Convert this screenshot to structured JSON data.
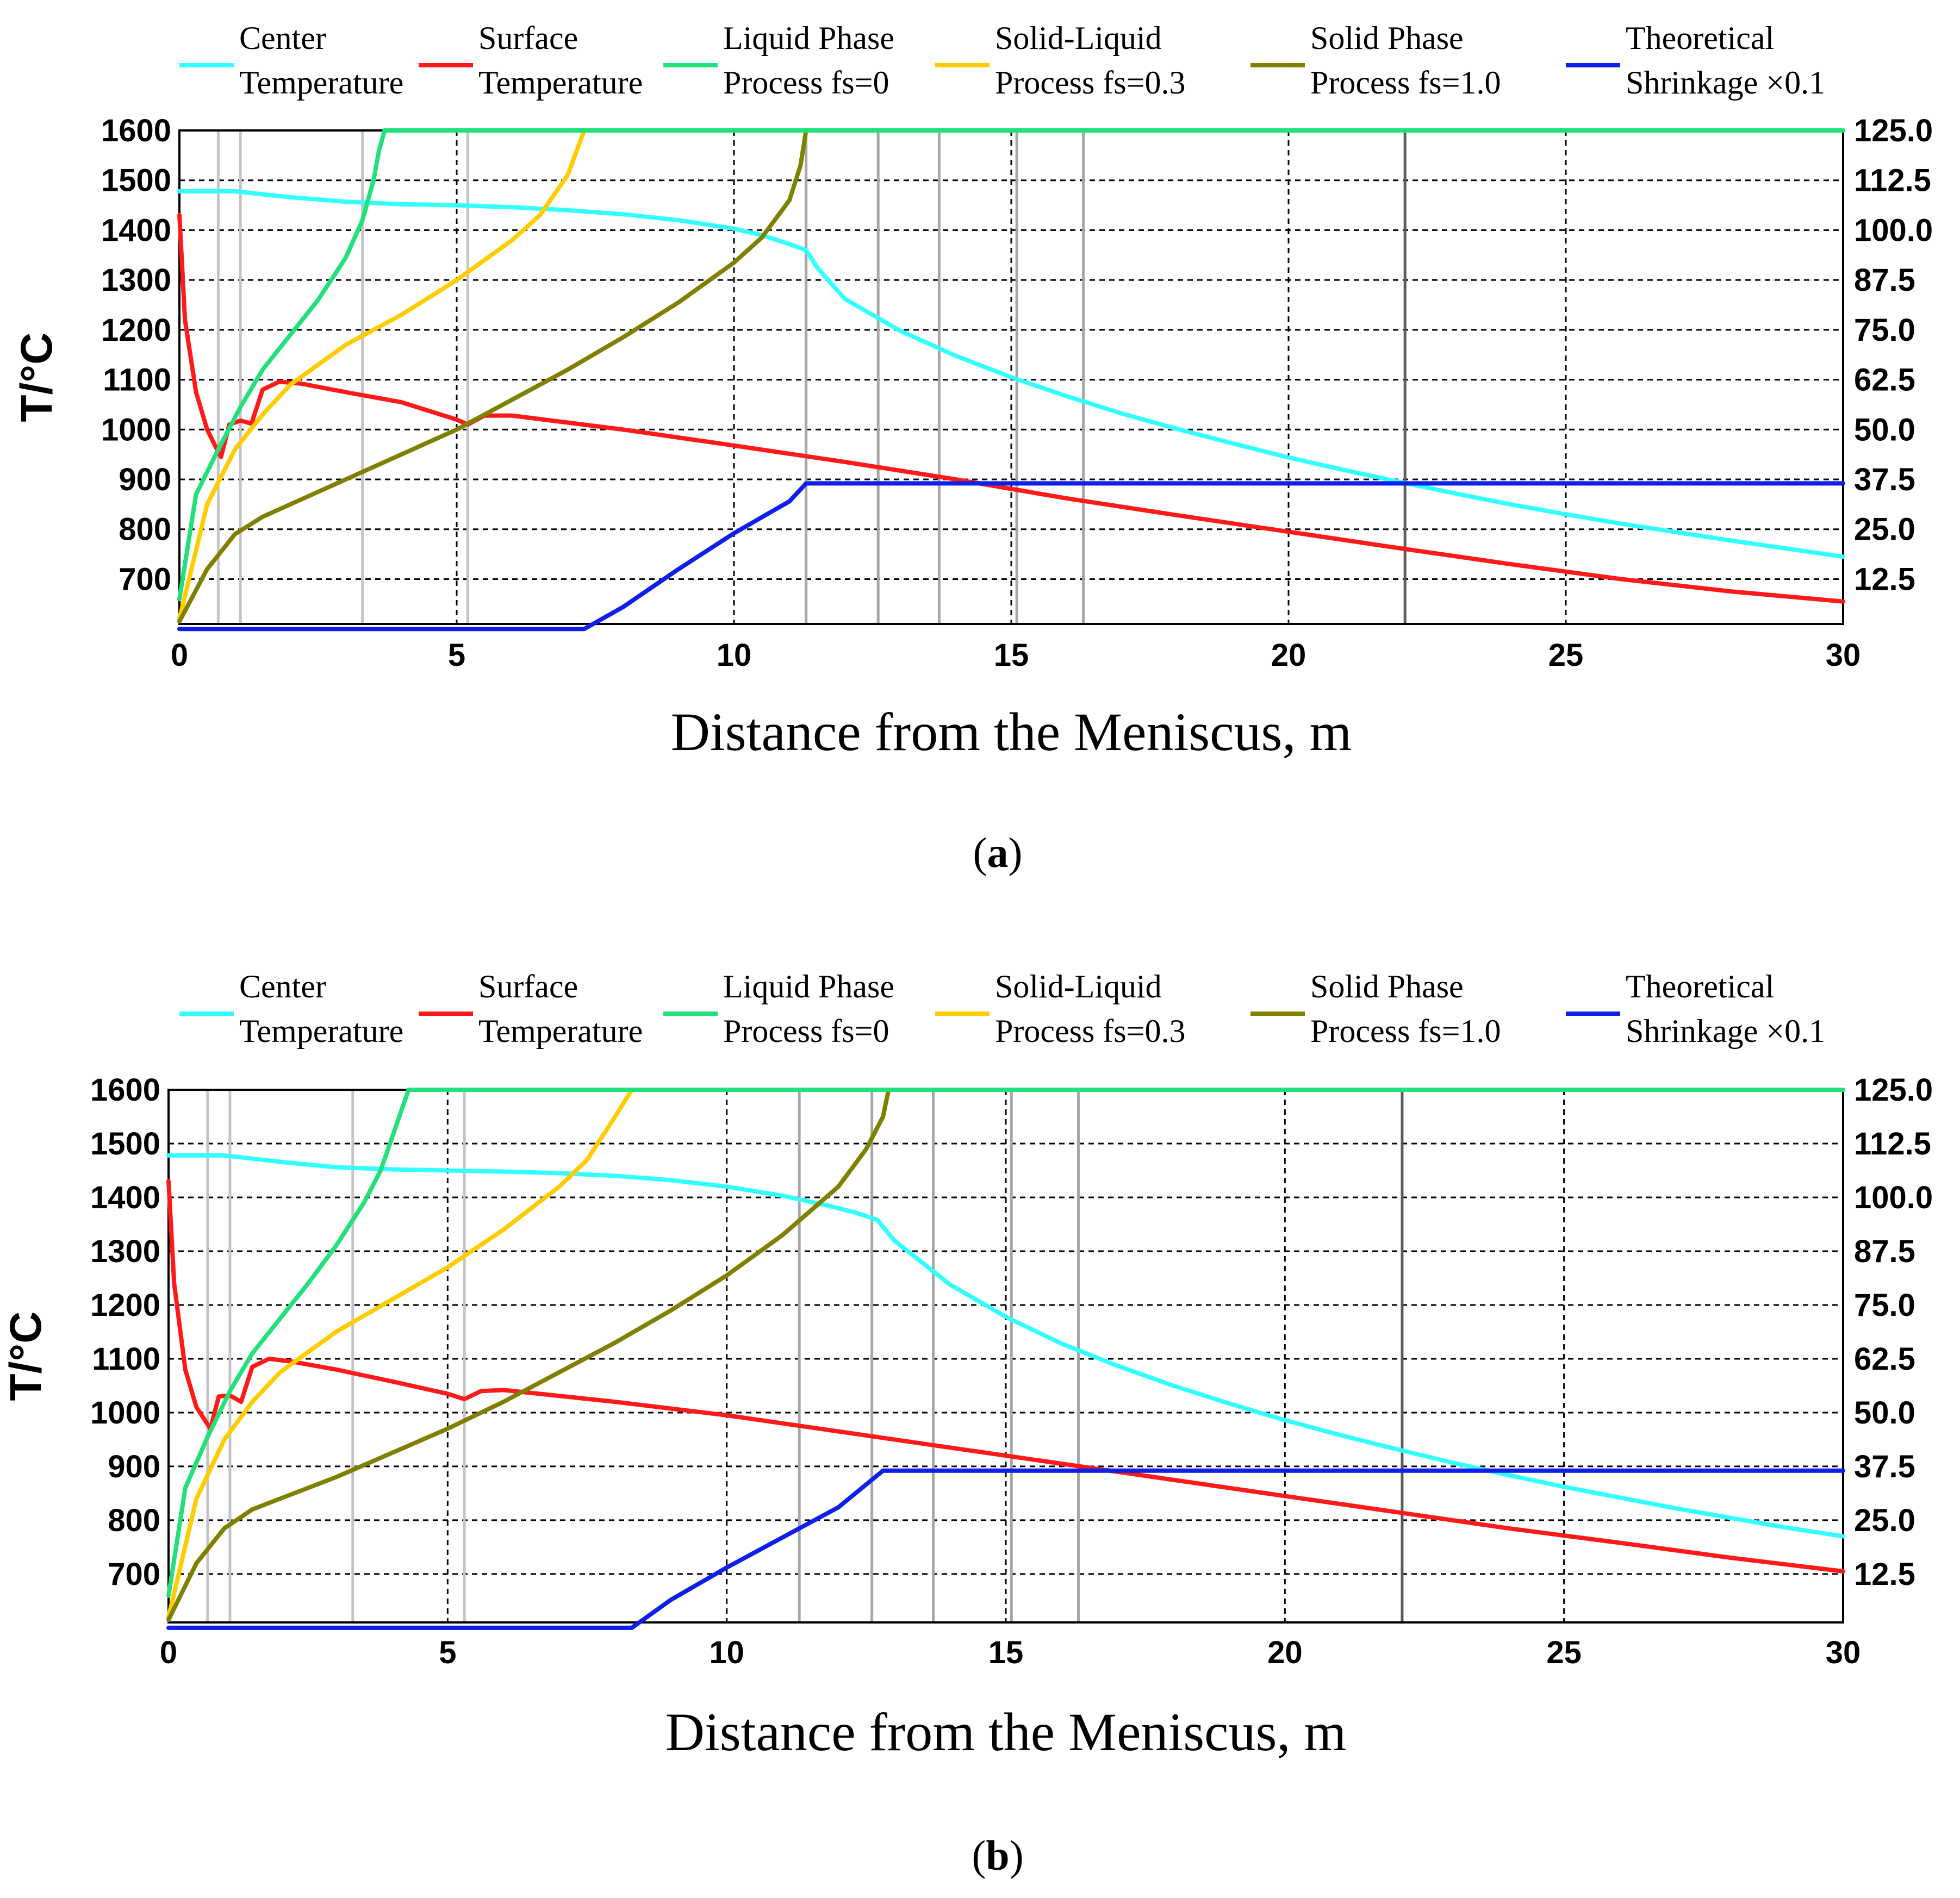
{
  "colors": {
    "center": "#33ffff",
    "surface": "#ff1a1a",
    "liquid": "#22e07a",
    "solid_liquid": "#ffcc00",
    "solid": "#808000",
    "shrinkage": "#0d1fe8",
    "grid": "#000000",
    "vline_light": "#c4c4c4",
    "vline_mid": "#a6a6a6",
    "vline_dark": "#5a5a5a"
  },
  "chart_data": [
    {
      "type": "line",
      "panel_label": "a",
      "xlabel": "Distance from the Meniscus, m",
      "ylabel": "T/°C",
      "xlim": [
        0,
        30
      ],
      "ylim": [
        610,
        1600
      ],
      "x_ticks": [
        "0",
        "5",
        "10",
        "15",
        "20",
        "25",
        "30"
      ],
      "y_ticks": [
        "1600",
        "1500",
        "1400",
        "1300",
        "1200",
        "1100",
        "1000",
        "900",
        "800",
        "700"
      ],
      "y2_ticks": [
        "125.0",
        "112.5",
        "100.0",
        "87.5",
        "75.0",
        "62.5",
        "50.0",
        "37.5",
        "25.0",
        "12.5"
      ],
      "y2lim": [
        0,
        125
      ],
      "light_vlines": [
        0.7,
        1.1,
        3.3,
        5.2
      ],
      "mid_vlines": [
        11.3,
        12.6,
        13.7,
        15.1,
        16.3
      ],
      "dark_vlines": [
        22.1
      ],
      "legend": [
        {
          "label1": "Center",
          "label2": "Temperature"
        },
        {
          "label1": "Surface",
          "label2": "Temperature"
        },
        {
          "label1": "Liquid Phase",
          "label2": "Process fs=0"
        },
        {
          "label1": "Solid-Liquid",
          "label2": "Process fs=0.3"
        },
        {
          "label1": "Solid Phase",
          "label2": "Process fs=1.0"
        },
        {
          "label1": "Theoretical",
          "label2": "Shrinkage ×0.1"
        }
      ],
      "series": [
        {
          "name": "Center Temperature",
          "color_key": "center",
          "x": [
            0,
            1,
            2,
            3,
            4,
            5,
            6,
            7,
            8,
            9,
            10,
            10.5,
            11,
            11.3,
            11.5,
            12,
            13,
            14,
            15,
            16,
            17,
            18,
            19,
            20,
            21,
            22,
            23,
            24,
            25,
            26,
            27,
            28,
            29,
            30
          ],
          "y": [
            1478,
            1478,
            1466,
            1457,
            1452,
            1450,
            1446,
            1440,
            1432,
            1420,
            1403,
            1390,
            1372,
            1360,
            1325,
            1262,
            1198,
            1148,
            1105,
            1067,
            1032,
            1001,
            972,
            944,
            919,
            895,
            872,
            850,
            830,
            811,
            794,
            777,
            761,
            745
          ]
        },
        {
          "name": "Surface Temperature",
          "color_key": "surface",
          "x": [
            0,
            0.1,
            0.3,
            0.5,
            0.7,
            0.75,
            0.9,
            1.1,
            1.3,
            1.5,
            1.8,
            2.2,
            3,
            4,
            5,
            5.2,
            5.5,
            6,
            8,
            10,
            12,
            14,
            16,
            18,
            20,
            22,
            24,
            26,
            28,
            30
          ],
          "y": [
            1430,
            1220,
            1075,
            1000,
            955,
            945,
            1010,
            1018,
            1012,
            1080,
            1096,
            1092,
            1075,
            1055,
            1020,
            1010,
            1028,
            1028,
            1000,
            968,
            935,
            900,
            862,
            828,
            795,
            762,
            730,
            700,
            675,
            655
          ]
        },
        {
          "name": "Liquid Phase Process fs=0",
          "color_key": "liquid",
          "x": [
            0,
            0.3,
            0.7,
            1.1,
            1.5,
            2,
            2.5,
            3,
            3.3,
            3.5,
            3.6,
            3.7
          ],
          "y": [
            660,
            870,
            960,
            1045,
            1120,
            1190,
            1260,
            1345,
            1420,
            1500,
            1560,
            1600
          ]
        },
        {
          "name": "Solid-Liquid Process fs=0.3",
          "color_key": "solid_liquid",
          "x": [
            0,
            0.5,
            1,
            1.5,
            2,
            3,
            4,
            5,
            6,
            6.5,
            7,
            7.3
          ],
          "y": [
            620,
            850,
            960,
            1030,
            1090,
            1170,
            1230,
            1300,
            1380,
            1430,
            1510,
            1600
          ]
        },
        {
          "name": "Solid Phase Process fs=1.0",
          "color_key": "solid",
          "x": [
            0,
            0.5,
            1,
            1.5,
            2,
            3,
            4,
            5,
            6,
            7,
            8,
            9,
            10,
            10.5,
            11,
            11.2,
            11.3
          ],
          "y": [
            615,
            720,
            790,
            825,
            850,
            900,
            950,
            1000,
            1060,
            1120,
            1185,
            1255,
            1335,
            1385,
            1460,
            1530,
            1600
          ]
        },
        {
          "name": "Theoretical Shrinkage ×0.1",
          "color_key": "shrinkage",
          "axis": "y2",
          "x": [
            0,
            7.3,
            8,
            9,
            10,
            11,
            11.3,
            30
          ],
          "y": [
            0,
            0,
            5.5,
            15,
            24,
            32,
            36.5,
            36.5
          ]
        },
        {
          "name": "Liquid Phase fs=0 (top plateau)",
          "color_key": "liquid",
          "x": [
            3.7,
            30
          ],
          "y": [
            1600,
            1600
          ]
        }
      ]
    },
    {
      "type": "line",
      "panel_label": "b",
      "xlabel": "Distance from the Meniscus, m",
      "ylabel": "T/°C",
      "xlim": [
        0,
        30
      ],
      "ylim": [
        610,
        1600
      ],
      "x_ticks": [
        "0",
        "5",
        "10",
        "15",
        "20",
        "25",
        "30"
      ],
      "y_ticks": [
        "1600",
        "1500",
        "1400",
        "1300",
        "1200",
        "1100",
        "1000",
        "900",
        "800",
        "700"
      ],
      "y2_ticks": [
        "125.0",
        "112.5",
        "100.0",
        "87.5",
        "75.0",
        "62.5",
        "50.0",
        "37.5",
        "25.0",
        "12.5"
      ],
      "y2lim": [
        0,
        125
      ],
      "light_vlines": [
        0.7,
        1.1,
        3.3,
        5.3
      ],
      "mid_vlines": [
        11.3,
        12.6,
        13.7,
        15.1,
        16.3
      ],
      "dark_vlines": [
        22.1
      ],
      "legend": [
        {
          "label1": "Center",
          "label2": "Temperature"
        },
        {
          "label1": "Surface",
          "label2": "Temperature"
        },
        {
          "label1": "Liquid Phase",
          "label2": "Process fs=0"
        },
        {
          "label1": "Solid-Liquid",
          "label2": "Process fs=0.3"
        },
        {
          "label1": "Solid Phase",
          "label2": "Process fs=1.0"
        },
        {
          "label1": "Theoretical",
          "label2": "Shrinkage ×0.1"
        }
      ],
      "series": [
        {
          "name": "Center Temperature",
          "color_key": "center",
          "x": [
            0,
            1,
            2,
            3,
            4,
            5,
            6,
            7,
            8,
            9,
            10,
            11,
            11.8,
            12.3,
            12.7,
            13,
            14,
            15,
            16,
            17,
            18,
            19,
            20,
            21,
            22,
            23,
            24,
            25,
            26,
            27,
            28,
            29,
            30
          ],
          "y": [
            1478,
            1478,
            1466,
            1456,
            1452,
            1450,
            1448,
            1445,
            1440,
            1432,
            1420,
            1403,
            1385,
            1372,
            1358,
            1320,
            1238,
            1178,
            1128,
            1087,
            1050,
            1017,
            986,
            958,
            932,
            907,
            884,
            862,
            842,
            822,
            804,
            786,
            770
          ]
        },
        {
          "name": "Surface Temperature",
          "color_key": "surface",
          "x": [
            0,
            0.1,
            0.3,
            0.5,
            0.75,
            0.9,
            1.1,
            1.3,
            1.5,
            1.8,
            2.2,
            3,
            4,
            5,
            5.3,
            5.6,
            6,
            8,
            10,
            12,
            14,
            16,
            18,
            20,
            22,
            24,
            26,
            28,
            30
          ],
          "y": [
            1430,
            1240,
            1080,
            1010,
            970,
            1030,
            1032,
            1020,
            1085,
            1100,
            1095,
            1080,
            1058,
            1035,
            1025,
            1040,
            1042,
            1020,
            995,
            965,
            935,
            905,
            875,
            845,
            815,
            785,
            758,
            730,
            705
          ]
        },
        {
          "name": "Liquid Phase Process fs=0",
          "color_key": "liquid",
          "x": [
            0,
            0.3,
            0.7,
            1.1,
            1.5,
            2,
            2.5,
            3,
            3.5,
            3.8,
            4.0,
            4.2,
            4.3
          ],
          "y": [
            660,
            860,
            955,
            1040,
            1110,
            1175,
            1240,
            1310,
            1390,
            1450,
            1510,
            1570,
            1600
          ]
        },
        {
          "name": "Solid-Liquid Process fs=0.3",
          "color_key": "solid_liquid",
          "x": [
            0,
            0.5,
            1,
            1.5,
            2,
            3,
            4,
            5,
            6,
            7,
            7.5,
            8,
            8.3
          ],
          "y": [
            620,
            840,
            950,
            1020,
            1075,
            1150,
            1210,
            1270,
            1340,
            1420,
            1470,
            1550,
            1600
          ]
        },
        {
          "name": "Solid Phase Process fs=1.0",
          "color_key": "solid",
          "x": [
            0,
            0.5,
            1,
            1.5,
            2,
            3,
            4,
            5,
            6,
            7,
            8,
            9,
            10,
            11,
            12,
            12.5,
            12.8,
            12.9
          ],
          "y": [
            615,
            720,
            785,
            820,
            840,
            880,
            925,
            970,
            1020,
            1075,
            1130,
            1190,
            1255,
            1330,
            1420,
            1490,
            1550,
            1600
          ]
        },
        {
          "name": "Theoretical Shrinkage ×0.1",
          "color_key": "shrinkage",
          "axis": "y2",
          "x": [
            0,
            8.3,
            9,
            10,
            11,
            12,
            12.8,
            30
          ],
          "y": [
            0,
            0,
            6.5,
            14,
            21,
            28,
            36.5,
            36.5
          ]
        },
        {
          "name": "Liquid Phase fs=0 (top plateau)",
          "color_key": "liquid",
          "x": [
            4.3,
            30
          ],
          "y": [
            1600,
            1600
          ]
        }
      ]
    }
  ]
}
